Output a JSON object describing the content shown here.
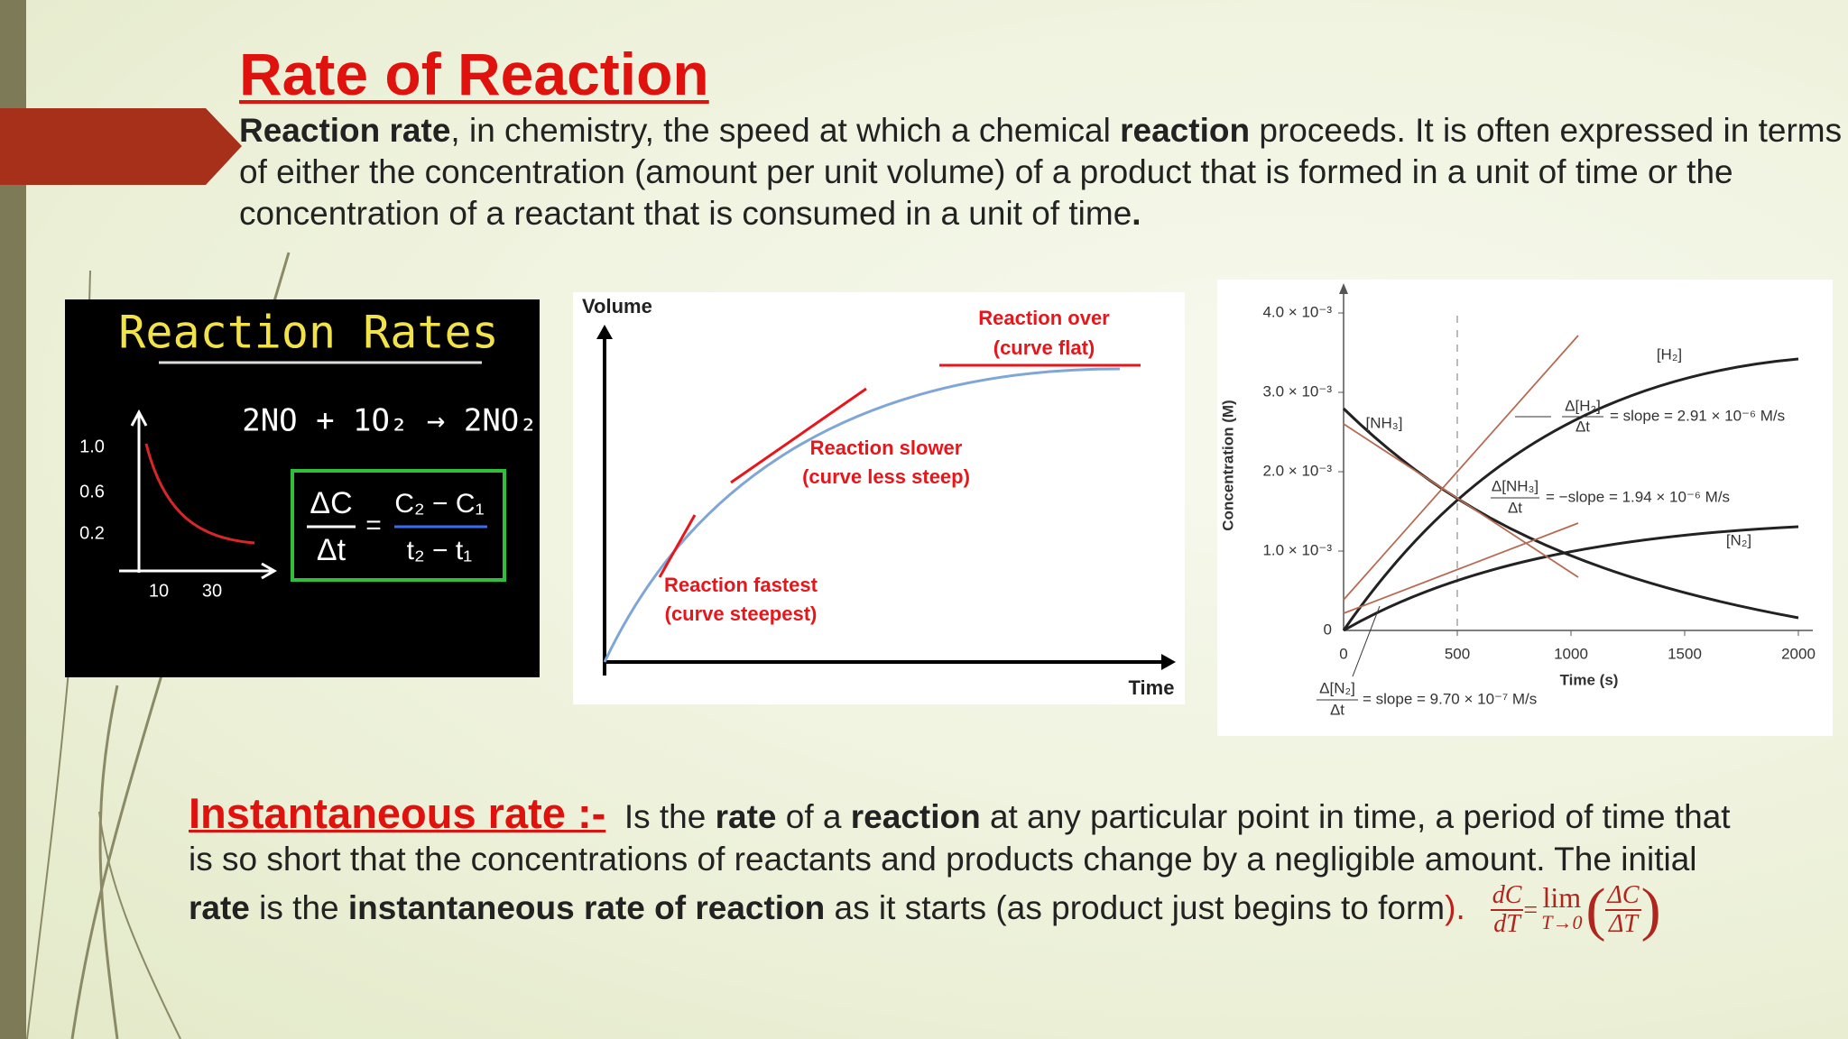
{
  "title": "Rate of Reaction",
  "intro": [
    "Reaction rate",
    ", in chemistry, the speed at which a chemical ",
    "reaction",
    " proceeds. It is often expressed in terms of either the concentration (amount per unit volume) of a product that is formed in a unit of time or the concentration of a reactant that is consumed in a unit of time",
    "."
  ],
  "board": {
    "title": "Reaction Rates",
    "equation": "2NO + 1O₂ → 2NO₂",
    "formula": {
      "lhs_top": "ΔC",
      "lhs_bottom": "Δt",
      "equals": "=",
      "rhs_top": "C₂ − C₁",
      "rhs_bottom": "t₂ − t₁"
    },
    "y_labels": [
      "1.0",
      "0.6",
      "0.2"
    ],
    "x_labels": [
      "10",
      "30"
    ]
  },
  "volume_chart": {
    "y_label": "Volume",
    "x_label": "Time",
    "annotations": [
      [
        "Reaction over",
        "(curve flat)"
      ],
      [
        "Reaction slower",
        "(curve less steep)"
      ],
      [
        "Reaction fastest",
        "(curve steepest)"
      ]
    ]
  },
  "concentration_chart": {
    "y_label": "Concentration (M)",
    "x_label": "Time (s)",
    "y_tick_labels": [
      "4.0 × 10⁻³",
      "3.0 × 10⁻³",
      "2.0 × 10⁻³",
      "1.0 × 10⁻³",
      "0"
    ],
    "x_tick_labels": [
      "0",
      "500",
      "1000",
      "1500",
      "2000"
    ],
    "curve_labels": [
      "[H₂]",
      "[NH₃]",
      "[N₂]"
    ],
    "slopes": [
      {
        "top": "Δ[H₂]",
        "bottom": "Δt",
        "text": "= slope = 2.91 × 10⁻⁶ M/s"
      },
      {
        "top": "Δ[NH₃]",
        "bottom": "Δt",
        "text": "= −slope = 1.94 × 10⁻⁶ M/s"
      },
      {
        "top": "Δ[N₂]",
        "bottom": "Δt",
        "text": "= slope = 9.70 × 10⁻⁷ M/s"
      }
    ]
  },
  "instantaneous": {
    "heading": "Instantaneous rate :-",
    "parts": [
      "Is the ",
      "rate",
      " of a ",
      "reaction",
      " at any particular point in time, a period of time that is so short that the concentrations of reactants and products change by a negligible amount. The initial ",
      "rate",
      " is the ",
      "instantaneous rate of reaction",
      " as it starts (as product just begins to ",
      "form",
      ")."
    ],
    "formula": {
      "top": "dC",
      "bottom": "dT",
      "equals": "=",
      "lim": "lim",
      "limit": "T→0",
      "inner_top": "ΔC",
      "inner_bottom": "ΔT"
    }
  }
}
